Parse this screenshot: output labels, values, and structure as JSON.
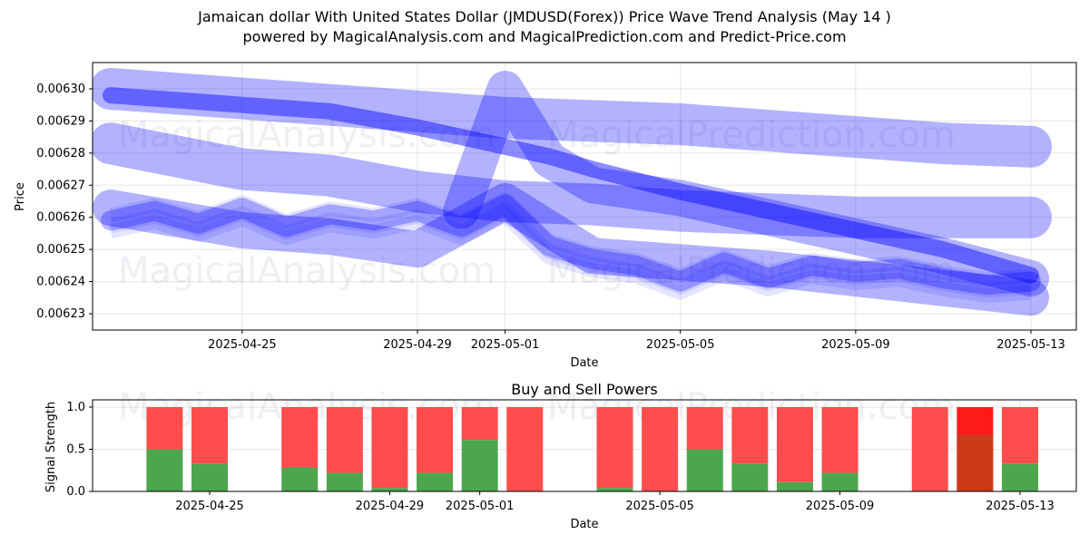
{
  "header": {
    "title": "Jamaican dollar With United States Dollar (JMDUSD(Forex)) Price Wave Trend Analysis (May 14 )",
    "subtitle": "powered by MagicalAnalysis.com and MagicalPrediction.com and Predict-Price.com"
  },
  "watermarks": [
    "MagicalAnalysis.com",
    "MagicalPrediction.com"
  ],
  "chart_data": [
    {
      "type": "line",
      "title": "",
      "xlabel": "Date",
      "ylabel": "Price",
      "x_ticks": [
        "2025-04-25",
        "2025-04-29",
        "2025-05-01",
        "2025-05-05",
        "2025-05-09",
        "2025-05-13"
      ],
      "y_ticks": [
        "0.00623",
        "0.00624",
        "0.00625",
        "0.00626",
        "0.00627",
        "0.00628",
        "0.00629",
        "0.00630"
      ],
      "xlim": [
        "2025-04-22",
        "2025-05-14"
      ],
      "ylim": [
        0.006225,
        0.006308
      ],
      "grid": true,
      "colors": {
        "wave": "#0000ff",
        "wave_fill": "#8c8cff"
      },
      "series": [
        {
          "x": [
            "2025-04-22",
            "2025-04-25",
            "2025-04-27",
            "2025-04-29",
            "2025-05-01",
            "2025-05-03",
            "2025-05-05",
            "2025-05-07",
            "2025-05-09",
            "2025-05-11",
            "2025-05-13"
          ],
          "y": [
            0.0063,
            0.006297,
            0.006295,
            0.006293,
            0.006291,
            0.00629,
            0.006289,
            0.006287,
            0.006285,
            0.006283,
            0.006282
          ]
        },
        {
          "x": [
            "2025-04-22",
            "2025-04-25",
            "2025-04-27",
            "2025-04-29",
            "2025-05-01",
            "2025-05-03",
            "2025-05-05",
            "2025-05-07",
            "2025-05-09",
            "2025-05-11",
            "2025-05-13"
          ],
          "y": [
            0.006283,
            0.006275,
            0.006273,
            0.006268,
            0.006265,
            0.006264,
            0.006262,
            0.006261,
            0.00626,
            0.00626,
            0.00626
          ]
        },
        {
          "x": [
            "2025-04-22",
            "2025-04-25",
            "2025-04-27",
            "2025-04-29",
            "2025-04-30",
            "2025-05-01",
            "2025-05-02",
            "2025-05-03",
            "2025-05-05",
            "2025-05-07",
            "2025-05-09",
            "2025-05-11",
            "2025-05-13"
          ],
          "y": [
            0.006298,
            0.006295,
            0.006293,
            0.006288,
            0.006285,
            0.006282,
            0.006279,
            0.006275,
            0.006268,
            0.006262,
            0.006256,
            0.00625,
            0.006242
          ]
        },
        {
          "x": [
            "2025-04-22",
            "2025-04-25",
            "2025-04-27",
            "2025-04-29",
            "2025-05-01",
            "2025-05-03",
            "2025-05-05",
            "2025-05-07",
            "2025-05-09",
            "2025-05-11",
            "2025-05-13"
          ],
          "y": [
            0.006263,
            0.006256,
            0.006254,
            0.00625,
            0.006265,
            0.006248,
            0.006246,
            0.006244,
            0.006241,
            0.006238,
            0.006235
          ]
        },
        {
          "x": [
            "2025-04-22",
            "2025-04-23",
            "2025-04-24",
            "2025-04-25",
            "2025-04-26",
            "2025-04-27",
            "2025-04-28",
            "2025-04-29",
            "2025-04-30",
            "2025-05-01",
            "2025-05-02",
            "2025-05-03",
            "2025-05-04",
            "2025-05-05",
            "2025-05-06",
            "2025-05-07",
            "2025-05-08",
            "2025-05-09",
            "2025-05-10",
            "2025-05-11",
            "2025-05-12",
            "2025-05-13"
          ],
          "y": [
            0.006259,
            0.006262,
            0.006258,
            0.006263,
            0.006257,
            0.006261,
            0.006259,
            0.006262,
            0.006257,
            0.006264,
            0.006251,
            0.006247,
            0.006245,
            0.00624,
            0.006246,
            0.006241,
            0.006245,
            0.006243,
            0.006244,
            0.006241,
            0.006239,
            0.00624
          ]
        },
        {
          "x": [
            "2025-04-30",
            "2025-05-01",
            "2025-05-02",
            "2025-05-03",
            "2025-05-05",
            "2025-05-07",
            "2025-05-09",
            "2025-05-11",
            "2025-05-13"
          ],
          "y": [
            0.006262,
            0.0063,
            0.006278,
            0.00627,
            0.006266,
            0.00626,
            0.006254,
            0.006248,
            0.006241
          ]
        }
      ]
    },
    {
      "type": "bar",
      "title": "Buy and Sell Powers",
      "xlabel": "Date",
      "ylabel": "Signal Strength",
      "x_ticks": [
        "2025-04-25",
        "2025-04-29",
        "2025-05-01",
        "2025-05-05",
        "2025-05-09",
        "2025-05-13"
      ],
      "y_ticks": [
        "0.0",
        "0.5",
        "1.0"
      ],
      "ylim": [
        0,
        1.05
      ],
      "grid": true,
      "colors": {
        "buy": "#4da64d",
        "sell": "#ff4d4d",
        "sell_strong": "#ff1a1a",
        "buy_strong": "#cc3a1a"
      },
      "categories": [
        "2025-04-24",
        "2025-04-25",
        "2025-04-27",
        "2025-04-28",
        "2025-04-29",
        "2025-04-30",
        "2025-05-01",
        "2025-05-02",
        "2025-05-04",
        "2025-05-05",
        "2025-05-06",
        "2025-05-07",
        "2025-05-08",
        "2025-05-09",
        "2025-05-11",
        "2025-05-12",
        "2025-05-13"
      ],
      "series": [
        {
          "values": [
            0.5,
            0.33,
            0.28,
            0.22,
            0.04,
            0.22,
            0.61,
            0.0,
            0.04,
            0.0,
            0.5,
            0.33,
            0.11,
            0.22,
            0.0,
            0.67,
            0.33
          ]
        },
        {
          "values": [
            0.5,
            0.67,
            0.72,
            0.78,
            0.96,
            0.78,
            0.39,
            1.0,
            0.96,
            1.0,
            0.5,
            0.67,
            0.89,
            0.78,
            1.0,
            0.33,
            0.67
          ]
        }
      ],
      "highlight": "2025-05-12"
    }
  ]
}
